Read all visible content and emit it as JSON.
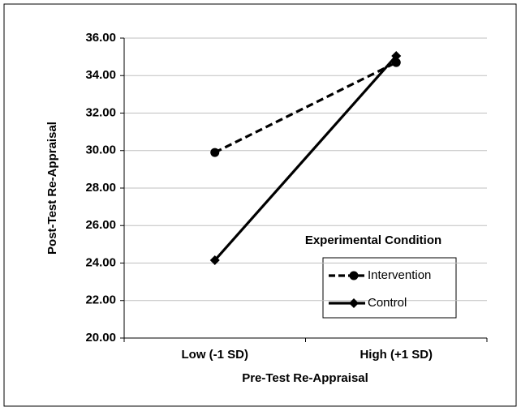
{
  "chart_data": {
    "type": "line",
    "xlabel": "Pre-Test Re-Appraisal",
    "ylabel": "Post-Test Re-Appraisal",
    "categories": [
      "Low (-1 SD)",
      "High (+1 SD)"
    ],
    "series": [
      {
        "name": "Intervention",
        "color": "#000000",
        "dash": true,
        "marker": "circle",
        "values": [
          29.9,
          34.7
        ]
      },
      {
        "name": "Control",
        "color": "#000000",
        "dash": false,
        "marker": "diamond",
        "values": [
          24.15,
          35.05
        ]
      }
    ],
    "legend_title": "Experimental Condition",
    "ylim": [
      20,
      36
    ],
    "yticks": [
      {
        "value": 20,
        "label": "20.00"
      },
      {
        "value": 22,
        "label": "22.00"
      },
      {
        "value": 24,
        "label": "24.00"
      },
      {
        "value": 26,
        "label": "26.00"
      },
      {
        "value": 28,
        "label": "28.00"
      },
      {
        "value": 30,
        "label": "30.00"
      },
      {
        "value": 32,
        "label": "32.00"
      },
      {
        "value": 34,
        "label": "34.00"
      },
      {
        "value": 36,
        "label": "36.00"
      }
    ],
    "grid": true
  }
}
